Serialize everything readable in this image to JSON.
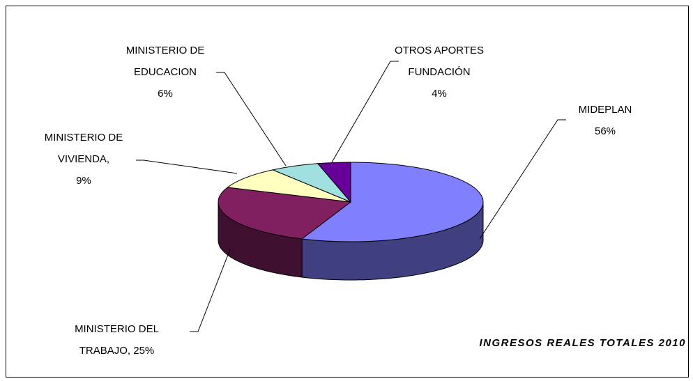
{
  "chart_data": {
    "type": "pie3d",
    "title": "INGRESOS REALES TOTALES 2010",
    "categories": [
      "MIDEPLAN",
      "MINISTERIO DEL TRABAJO,",
      "MINISTERIO DE VIVIENDA,",
      "MINISTERIO DE EDUCACION",
      "OTROS APORTES FUNDACIÓN"
    ],
    "values": [
      56,
      25,
      9,
      6,
      4
    ],
    "value_labels": [
      "56%",
      "25%",
      "9%",
      "6%",
      "4%"
    ],
    "colors": [
      "#8080ff",
      "#802060",
      "#ffffc0",
      "#a0e0e0",
      "#660099"
    ]
  }
}
